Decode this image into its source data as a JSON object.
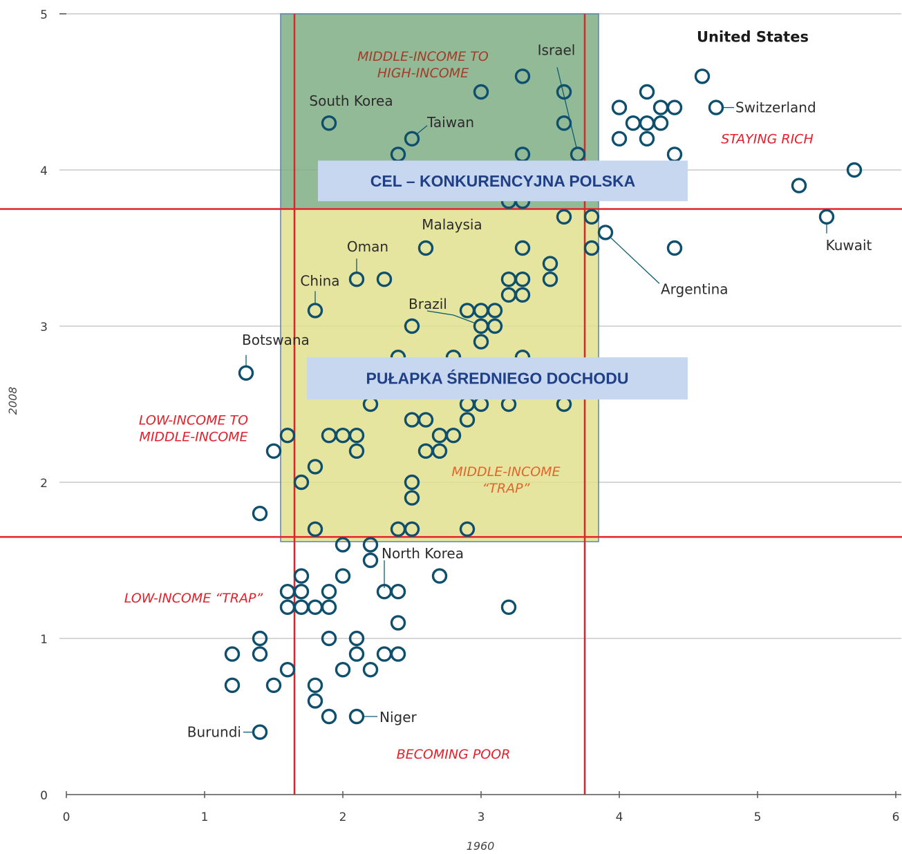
{
  "chart_data": {
    "type": "scatter",
    "title": "",
    "xlabel": "1960",
    "ylabel": "2008",
    "xlim": [
      0,
      6
    ],
    "ylim": [
      0,
      5
    ],
    "xticks": [
      0,
      1,
      2,
      3,
      4,
      5,
      6
    ],
    "yticks": [
      0,
      1,
      2,
      3,
      4,
      5
    ],
    "grid": "horizontal",
    "threshold_lines": {
      "x": [
        1.65,
        3.75
      ],
      "y": [
        1.65,
        3.75
      ],
      "color": "#e5202a"
    },
    "point_color": "#0e4f6e",
    "highlight_regions": [
      {
        "name": "target",
        "x": [
          1.55,
          3.85
        ],
        "y": [
          3.75,
          5.0
        ],
        "fill": "#7fae84"
      },
      {
        "name": "trap",
        "x": [
          1.55,
          3.85
        ],
        "y": [
          1.62,
          3.75
        ],
        "fill": "#e2e08f"
      }
    ],
    "banners": [
      {
        "text": "CEL – KONKURENCYJNA POLSKA",
        "x": [
          1.82,
          4.5
        ],
        "y": [
          3.8,
          4.06
        ]
      },
      {
        "text": "PUŁAPKA ŚREDNIEGO DOCHODU",
        "x": [
          1.74,
          4.5
        ],
        "y": [
          2.53,
          2.8
        ]
      }
    ],
    "region_labels": [
      {
        "lines": [
          "MIDDLE-INCOME TO",
          "HIGH-INCOME"
        ],
        "x": 2.58,
        "y": 4.7,
        "color": "#a33b29"
      },
      {
        "lines": [
          "STAYING RICH"
        ],
        "x": 5.07,
        "y": 4.17,
        "color": "#e5202a"
      },
      {
        "lines": [
          "LOW-INCOME TO",
          "MIDDLE-INCOME"
        ],
        "x": 0.92,
        "y": 2.37,
        "color": "#e5202a"
      },
      {
        "lines": [
          "MIDDLE-INCOME",
          "“TRAP”"
        ],
        "x": 3.18,
        "y": 2.04,
        "color": "#e3642a"
      },
      {
        "lines": [
          "LOW-INCOME “TRAP”"
        ],
        "x": 0.92,
        "y": 1.23,
        "color": "#e5202a"
      },
      {
        "lines": [
          "BECOMING POOR"
        ],
        "x": 2.8,
        "y": 0.23,
        "color": "#e5202a"
      }
    ],
    "points": [
      {
        "x": 4.6,
        "y": 4.6,
        "label": "United States"
      },
      {
        "x": 4.7,
        "y": 4.4,
        "label": "Switzerland"
      },
      {
        "x": 5.7,
        "y": 4.0
      },
      {
        "x": 5.3,
        "y": 3.9
      },
      {
        "x": 5.5,
        "y": 3.7,
        "label": "Kuwait"
      },
      {
        "x": 4.4,
        "y": 3.5
      },
      {
        "x": 3.9,
        "y": 3.6,
        "label": "Argentina"
      },
      {
        "x": 4.0,
        "y": 4.4
      },
      {
        "x": 4.2,
        "y": 4.5
      },
      {
        "x": 4.3,
        "y": 4.4
      },
      {
        "x": 4.4,
        "y": 4.4
      },
      {
        "x": 4.1,
        "y": 4.3
      },
      {
        "x": 4.2,
        "y": 4.3
      },
      {
        "x": 4.3,
        "y": 4.3
      },
      {
        "x": 4.0,
        "y": 4.2
      },
      {
        "x": 4.2,
        "y": 4.2
      },
      {
        "x": 4.4,
        "y": 4.1
      },
      {
        "x": 3.3,
        "y": 4.6
      },
      {
        "x": 3.0,
        "y": 4.5
      },
      {
        "x": 3.6,
        "y": 4.5
      },
      {
        "x": 3.6,
        "y": 4.3
      },
      {
        "x": 3.3,
        "y": 4.1
      },
      {
        "x": 3.7,
        "y": 4.1,
        "label": "Israel"
      },
      {
        "x": 1.9,
        "y": 4.3,
        "label": "South Korea"
      },
      {
        "x": 2.5,
        "y": 4.2,
        "label": "Taiwan"
      },
      {
        "x": 2.4,
        "y": 4.1
      },
      {
        "x": 3.2,
        "y": 3.8
      },
      {
        "x": 3.3,
        "y": 3.8
      },
      {
        "x": 3.6,
        "y": 3.7
      },
      {
        "x": 3.8,
        "y": 3.7
      },
      {
        "x": 2.6,
        "y": 3.5,
        "label": "Malaysia"
      },
      {
        "x": 3.3,
        "y": 3.5
      },
      {
        "x": 3.8,
        "y": 3.5
      },
      {
        "x": 2.1,
        "y": 3.3,
        "label": "Oman"
      },
      {
        "x": 2.3,
        "y": 3.3
      },
      {
        "x": 1.8,
        "y": 3.1,
        "label": "China"
      },
      {
        "x": 3.5,
        "y": 3.4
      },
      {
        "x": 3.5,
        "y": 3.3
      },
      {
        "x": 3.2,
        "y": 3.3
      },
      {
        "x": 3.3,
        "y": 3.3
      },
      {
        "x": 3.2,
        "y": 3.2
      },
      {
        "x": 3.3,
        "y": 3.2
      },
      {
        "x": 2.9,
        "y": 3.1
      },
      {
        "x": 3.0,
        "y": 3.1
      },
      {
        "x": 3.1,
        "y": 3.1
      },
      {
        "x": 2.5,
        "y": 3.0
      },
      {
        "x": 3.0,
        "y": 3.0,
        "label": "Brazil"
      },
      {
        "x": 3.1,
        "y": 3.0
      },
      {
        "x": 3.0,
        "y": 2.9
      },
      {
        "x": 1.3,
        "y": 2.7,
        "label": "Botswana"
      },
      {
        "x": 2.4,
        "y": 2.8
      },
      {
        "x": 2.8,
        "y": 2.8
      },
      {
        "x": 3.3,
        "y": 2.8
      },
      {
        "x": 2.2,
        "y": 2.5
      },
      {
        "x": 2.9,
        "y": 2.5
      },
      {
        "x": 3.0,
        "y": 2.5
      },
      {
        "x": 3.2,
        "y": 2.5
      },
      {
        "x": 3.6,
        "y": 2.5
      },
      {
        "x": 2.5,
        "y": 2.4
      },
      {
        "x": 2.6,
        "y": 2.4
      },
      {
        "x": 2.9,
        "y": 2.4
      },
      {
        "x": 1.6,
        "y": 2.3
      },
      {
        "x": 1.9,
        "y": 2.3
      },
      {
        "x": 2.0,
        "y": 2.3
      },
      {
        "x": 2.1,
        "y": 2.3
      },
      {
        "x": 2.7,
        "y": 2.3
      },
      {
        "x": 2.8,
        "y": 2.3
      },
      {
        "x": 1.5,
        "y": 2.2
      },
      {
        "x": 2.1,
        "y": 2.2
      },
      {
        "x": 2.6,
        "y": 2.2
      },
      {
        "x": 2.7,
        "y": 2.2
      },
      {
        "x": 1.8,
        "y": 2.1
      },
      {
        "x": 1.7,
        "y": 2.0
      },
      {
        "x": 2.5,
        "y": 2.0
      },
      {
        "x": 2.5,
        "y": 1.9
      },
      {
        "x": 1.4,
        "y": 1.8
      },
      {
        "x": 1.8,
        "y": 1.7
      },
      {
        "x": 2.4,
        "y": 1.7
      },
      {
        "x": 2.5,
        "y": 1.7
      },
      {
        "x": 2.9,
        "y": 1.7
      },
      {
        "x": 2.0,
        "y": 1.6
      },
      {
        "x": 2.2,
        "y": 1.6
      },
      {
        "x": 2.2,
        "y": 1.5,
        "label": "North Korea"
      },
      {
        "x": 1.7,
        "y": 1.4
      },
      {
        "x": 2.0,
        "y": 1.4
      },
      {
        "x": 2.7,
        "y": 1.4
      },
      {
        "x": 1.6,
        "y": 1.3
      },
      {
        "x": 1.7,
        "y": 1.3
      },
      {
        "x": 1.9,
        "y": 1.3
      },
      {
        "x": 2.3,
        "y": 1.3
      },
      {
        "x": 2.4,
        "y": 1.3
      },
      {
        "x": 1.6,
        "y": 1.2
      },
      {
        "x": 1.7,
        "y": 1.2
      },
      {
        "x": 1.8,
        "y": 1.2
      },
      {
        "x": 1.9,
        "y": 1.2
      },
      {
        "x": 3.2,
        "y": 1.2
      },
      {
        "x": 2.4,
        "y": 1.1
      },
      {
        "x": 1.4,
        "y": 1.0
      },
      {
        "x": 1.9,
        "y": 1.0
      },
      {
        "x": 2.1,
        "y": 1.0
      },
      {
        "x": 1.2,
        "y": 0.9
      },
      {
        "x": 1.4,
        "y": 0.9
      },
      {
        "x": 2.1,
        "y": 0.9
      },
      {
        "x": 2.3,
        "y": 0.9
      },
      {
        "x": 2.4,
        "y": 0.9
      },
      {
        "x": 1.6,
        "y": 0.8
      },
      {
        "x": 2.0,
        "y": 0.8
      },
      {
        "x": 2.2,
        "y": 0.8
      },
      {
        "x": 1.2,
        "y": 0.7
      },
      {
        "x": 1.5,
        "y": 0.7
      },
      {
        "x": 1.8,
        "y": 0.7
      },
      {
        "x": 1.8,
        "y": 0.6
      },
      {
        "x": 1.9,
        "y": 0.5
      },
      {
        "x": 2.1,
        "y": 0.5,
        "label": "Niger"
      },
      {
        "x": 1.4,
        "y": 0.4,
        "label": "Burundi"
      }
    ]
  }
}
